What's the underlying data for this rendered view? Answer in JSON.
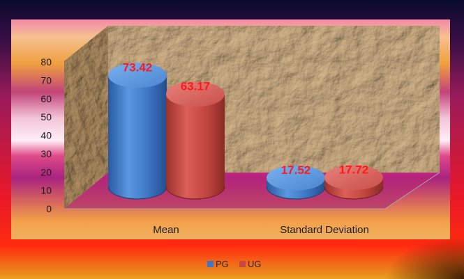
{
  "chart_data": {
    "type": "bar",
    "style": "3d-cylinder",
    "categories": [
      "Mean",
      "Standard Deviation"
    ],
    "series": [
      {
        "name": "PG",
        "values": [
          73.42,
          17.52
        ],
        "labels": [
          "73.42",
          "17.52"
        ],
        "color": "#3d78c4"
      },
      {
        "name": "UG",
        "values": [
          63.17,
          17.72
        ],
        "labels": [
          "63.17",
          "17.72"
        ],
        "color": "#c8473f"
      }
    ],
    "ylim": [
      0,
      80
    ],
    "yticks": [
      "0",
      "10",
      "20",
      "30",
      "40",
      "50",
      "60",
      "70",
      "80"
    ],
    "legend_position": "bottom",
    "data_label_color": "#ff1a1a"
  }
}
